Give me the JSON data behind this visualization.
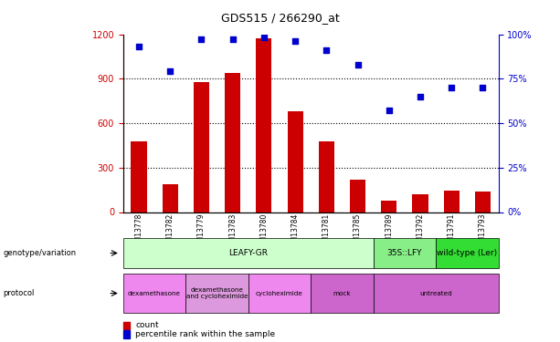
{
  "title": "GDS515 / 266290_at",
  "samples": [
    "GSM13778",
    "GSM13782",
    "GSM13779",
    "GSM13783",
    "GSM13780",
    "GSM13784",
    "GSM13781",
    "GSM13785",
    "GSM13789",
    "GSM13792",
    "GSM13791",
    "GSM13793"
  ],
  "counts": [
    480,
    190,
    880,
    940,
    1170,
    680,
    480,
    220,
    75,
    120,
    145,
    140
  ],
  "percentiles": [
    93,
    79,
    97,
    97,
    98,
    96,
    91,
    83,
    57,
    65,
    70,
    70
  ],
  "ylim_left": [
    0,
    1200
  ],
  "ylim_right": [
    0,
    100
  ],
  "yticks_left": [
    0,
    300,
    600,
    900,
    1200
  ],
  "yticks_right": [
    0,
    25,
    50,
    75,
    100
  ],
  "bar_color": "#cc0000",
  "dot_color": "#0000cc",
  "genotype_groups": [
    {
      "label": "LEAFY-GR",
      "start": 0,
      "end": 8,
      "color": "#ccffcc"
    },
    {
      "label": "35S::LFY",
      "start": 8,
      "end": 10,
      "color": "#88ee88"
    },
    {
      "label": "wild-type (Ler)",
      "start": 10,
      "end": 12,
      "color": "#33dd33"
    }
  ],
  "protocol_groups": [
    {
      "label": "dexamethasone",
      "start": 0,
      "end": 2,
      "color": "#ee88ee"
    },
    {
      "label": "dexamethasone\nand cycloheximide",
      "start": 2,
      "end": 4,
      "color": "#dd99dd"
    },
    {
      "label": "cycloheximide",
      "start": 4,
      "end": 6,
      "color": "#ee88ee"
    },
    {
      "label": "mock",
      "start": 6,
      "end": 8,
      "color": "#cc66cc"
    },
    {
      "label": "untreated",
      "start": 8,
      "end": 12,
      "color": "#cc66cc"
    }
  ],
  "left_axis_color": "#cc0000",
  "right_axis_color": "#0000cc",
  "legend_count": "count",
  "legend_percentile": "percentile rank within the sample"
}
